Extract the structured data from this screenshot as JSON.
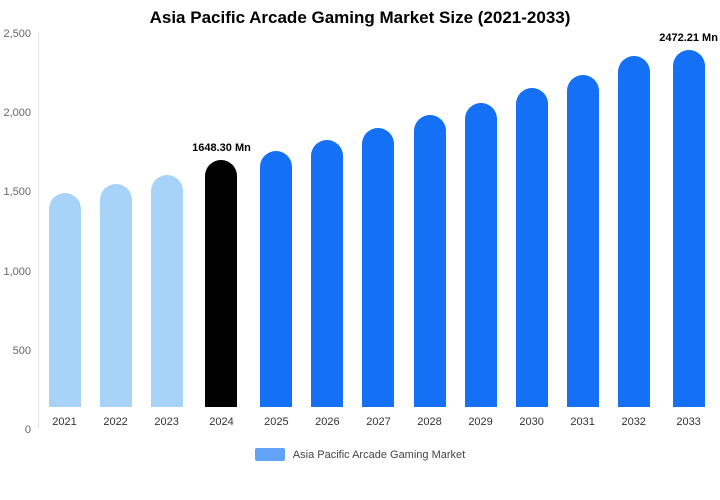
{
  "chart_data": {
    "type": "bar",
    "title": "Asia Pacific Arcade Gaming Market Size (2021-2033)",
    "categories": [
      "2021",
      "2022",
      "2023",
      "2024",
      "2025",
      "2026",
      "2027",
      "2028",
      "2029",
      "2030",
      "2031",
      "2032",
      "2033"
    ],
    "values": [
      1430,
      1490,
      1550,
      1648.3,
      1705,
      1780,
      1860,
      1945,
      2030,
      2130,
      2215,
      2340,
      2472.21
    ],
    "colors": [
      "#A7D3F8",
      "#A7D3F8",
      "#A7D3F8",
      "#000000",
      "#1470F4",
      "#1470F4",
      "#1470F4",
      "#1470F4",
      "#1470F4",
      "#1470F4",
      "#1470F4",
      "#1470F4",
      "#1470F4"
    ],
    "annotations": [
      {
        "index": 3,
        "text": "1648.30 Mn"
      },
      {
        "index": 12,
        "text": "2472.21 Mn"
      }
    ],
    "ylim": [
      0,
      2500
    ],
    "yticks": [
      0,
      500,
      1000,
      1500,
      2000,
      2500
    ],
    "ytick_labels": [
      "0",
      "500",
      "1,000",
      "1,500",
      "2,000",
      "2,500"
    ],
    "grid": false,
    "legend_position": "bottom",
    "legend": [
      {
        "label": "Asia Pacific Arcade Gaming Market",
        "color": "#62A3F7"
      }
    ],
    "xlabel": "",
    "ylabel": ""
  }
}
